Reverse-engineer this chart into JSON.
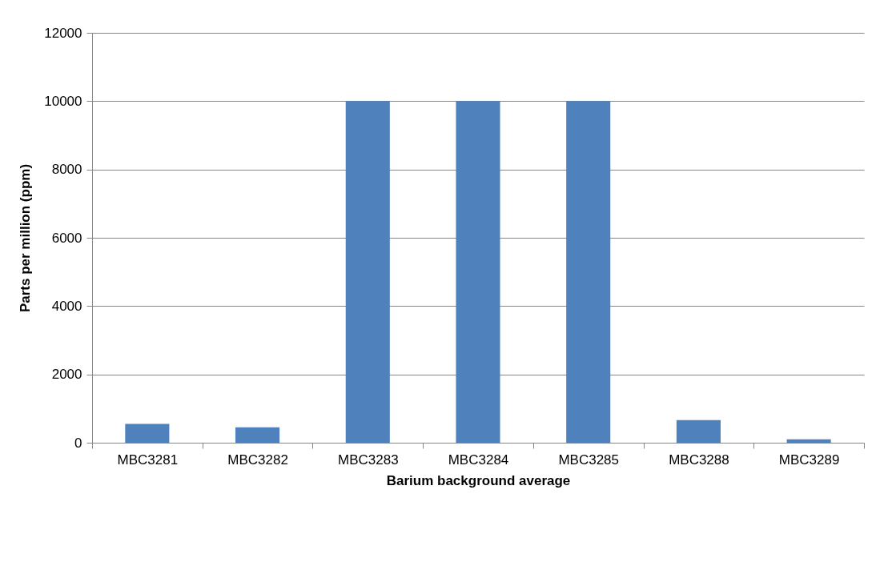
{
  "chart_data": {
    "type": "bar",
    "xlabel": "Barium background average",
    "ylabel": "Parts per million (ppm)",
    "categories": [
      "MBC3281",
      "MBC3282",
      "MBC3283",
      "MBC3284",
      "MBC3285",
      "MBC3288",
      "MBC3289"
    ],
    "values": [
      550,
      450,
      10000,
      10000,
      10000,
      660,
      100
    ],
    "color": "#4f81bd",
    "ylim": [
      0,
      12000
    ],
    "yticks": [
      0,
      2000,
      4000,
      6000,
      8000,
      10000,
      12000
    ],
    "grid": "y"
  }
}
